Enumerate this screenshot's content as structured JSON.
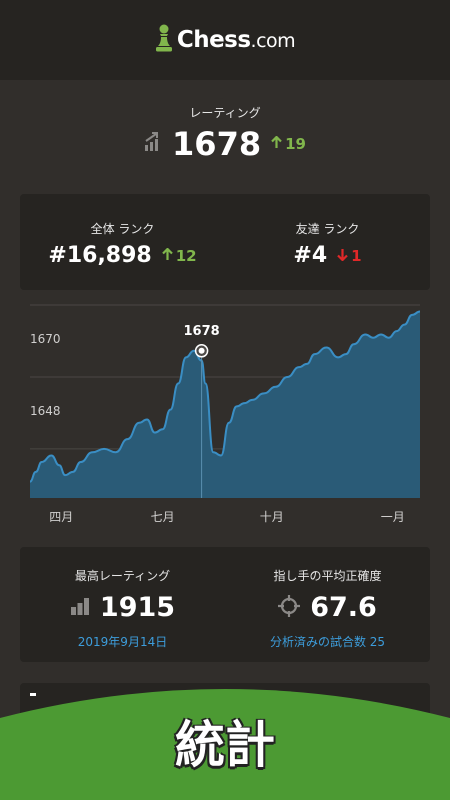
{
  "app": {
    "logo_main": "Chess",
    "logo_suffix": ".com"
  },
  "rating": {
    "label": "レーティング",
    "value": "1678",
    "delta": "19",
    "delta_direction": "up"
  },
  "ranks": {
    "overall": {
      "label": "全体 ランク",
      "value": "#16,898",
      "delta": "12",
      "delta_direction": "up"
    },
    "friends": {
      "label": "友達 ランク",
      "value": "#4",
      "delta": "1",
      "delta_direction": "down"
    }
  },
  "chart_data": {
    "type": "area",
    "title": "",
    "xlabel": "",
    "ylabel": "",
    "y_ticks": [
      "1692",
      "1670",
      "1648"
    ],
    "ylim": [
      1633,
      1692
    ],
    "x_ticks": [
      "四月",
      "七月",
      "十月",
      "一月"
    ],
    "x_tick_positions": [
      0.08,
      0.34,
      0.62,
      0.93
    ],
    "highlight": {
      "label": "1678",
      "value": 1678,
      "x": 0.44
    },
    "series": [
      {
        "x": [
          0,
          0.015,
          0.03,
          0.055,
          0.075,
          0.09,
          0.11,
          0.13,
          0.16,
          0.19,
          0.22,
          0.25,
          0.28,
          0.3,
          0.32,
          0.34,
          0.36,
          0.38,
          0.4,
          0.42,
          0.44,
          0.45,
          0.47,
          0.49,
          0.51,
          0.53,
          0.55,
          0.57,
          0.6,
          0.63,
          0.66,
          0.69,
          0.71,
          0.73,
          0.76,
          0.79,
          0.81,
          0.83,
          0.86,
          0.88,
          0.9,
          0.92,
          0.94,
          0.96,
          0.98,
          1.0
        ],
        "values": [
          1638,
          1641,
          1644,
          1646,
          1643,
          1640,
          1641,
          1644,
          1647,
          1648,
          1647,
          1651,
          1656,
          1657,
          1653,
          1654,
          1660,
          1668,
          1676,
          1678,
          1675,
          1668,
          1647,
          1646,
          1656,
          1661,
          1662,
          1663,
          1665,
          1667,
          1670,
          1673,
          1674,
          1677,
          1679,
          1676,
          1677,
          1680,
          1683,
          1682,
          1683,
          1682,
          1684,
          1686,
          1689,
          1690
        ]
      }
    ],
    "colors": {
      "line": "#3a8ec4",
      "fill": "#2a5b77"
    }
  },
  "stats": {
    "highest": {
      "label": "最高レーティング",
      "value": "1915",
      "sub": "2019年9月14日"
    },
    "accuracy": {
      "label": "指し手の平均正確度",
      "value": "67.6",
      "sub": "分析済みの試合数 25"
    }
  },
  "banner": {
    "title": "統計"
  }
}
